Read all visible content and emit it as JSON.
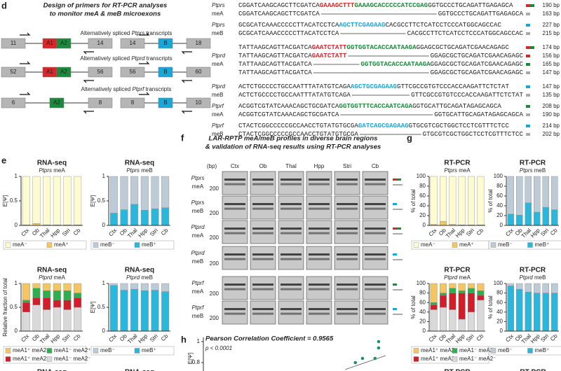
{
  "panel_d": {
    "letter": "d",
    "title": [
      "Design of primers for RT-PCR analyses",
      "to monitor meA & meB microexons"
    ],
    "exon_colors": {
      "A1": "#d9262b",
      "A2": "#1b8a3c",
      "B": "#1ba6d8"
    },
    "transcripts": [
      {
        "label": [
          "Alternatively spliced ",
          "Ptprs",
          " transcripts"
        ],
        "a_exons": [
          "11",
          "A1",
          "A2",
          "14"
        ],
        "b_exons": [
          "14",
          "B",
          "18"
        ]
      },
      {
        "label": [
          "Alternatively spliced ",
          "Ptprd",
          " transcripts"
        ],
        "a_exons": [
          "52",
          "A1",
          "A2",
          "56"
        ],
        "b_exons": [
          "56",
          "B",
          "60"
        ]
      },
      {
        "label": [
          "Alternatively spliced ",
          "Ptprf",
          " transcripts"
        ],
        "a_exons": [
          "6",
          "A2",
          "8"
        ],
        "b_exons": [
          "8",
          "B",
          "10"
        ]
      }
    ],
    "sequence_groups": [
      {
        "gene": "Ptprs",
        "isoform": "meA",
        "rows": [
          {
            "left": [
              {
                "text": "CGGATCAAGCAGCTTCGATCA"
              },
              {
                "text": "GAAAGCTTT",
                "color": "#d9262b"
              },
              {
                "text": "GAAAGCACCCCCATCCGAG",
                "color": "#1b8a3c"
              },
              {
                "text": "GGTGCCCTGCAGATTGAGAGCA"
              }
            ],
            "size": "190 bp"
          },
          {
            "left": [
              {
                "text": "CGGATCAAGCAGCTTCGATCA"
              }
            ],
            "right": [
              {
                "text": "GGTGCCCTGCAGATTGAGAGCA"
              }
            ],
            "size": "163 bp"
          }
        ]
      },
      {
        "gene": "Ptprs",
        "isoform": "meB",
        "rows": [
          {
            "left": [
              {
                "text": "GCGCATCAAACCCCCTTACATCCTCA"
              },
              {
                "text": "AGCTTCGAGAAG",
                "color": "#1ba6d8"
              },
              {
                "text": "CACGCCTTCTCATCCTCCCATGGCAGCCAC"
              }
            ],
            "size": "227 bp"
          },
          {
            "left": [
              {
                "text": "GCGCATCAAACCCCCTTACATCCTCA"
              }
            ],
            "right": [
              {
                "text": "CACGCCTTCTCATCCTCCCATGGCAGCCAC"
              }
            ],
            "size": "215 bp"
          }
        ]
      },
      {
        "gene": "Ptprd",
        "isoform": "meA",
        "rows": [
          {
            "left": [
              {
                "text": "TATTAAGCAGTTACGATCA"
              },
              {
                "text": "GAATCTATT",
                "color": "#d9262b"
              },
              {
                "text": "GGTGGTACACCAATAAGA",
                "color": "#1b8a3c"
              },
              {
                "text": "GGAGCGCTGCAGATCGAACAGAGC"
              }
            ],
            "size": "174 bp"
          },
          {
            "left": [
              {
                "text": "TATTAAGCAGTTACGATCA"
              },
              {
                "text": "GAATCTATT",
                "color": "#d9262b"
              }
            ],
            "right": [
              {
                "text": "GGAGCGCTGCAGATCGAACAGAGC"
              }
            ],
            "size": "156 bp"
          },
          {
            "left": [
              {
                "text": "TATTAAGCAGTTACGATCA"
              }
            ],
            "right": [
              {
                "text": "GGTGGTACACCAATAAGA",
                "color": "#1b8a3c"
              },
              {
                "text": "GGAGCGCTGCAGATCGAACAGAGC"
              }
            ],
            "size": "165 bp"
          },
          {
            "left": [
              {
                "text": "TATTAAGCAGTTACGATCA"
              }
            ],
            "right": [
              {
                "text": "GGAGCGCTGCAGATCGAACAGAGC"
              }
            ],
            "size": "147 bp"
          }
        ]
      },
      {
        "gene": "Ptprd",
        "isoform": "meB",
        "rows": [
          {
            "left": [
              {
                "text": "ACTCTGCCCCTGCCAATTTATATGTCAGA"
              },
              {
                "text": "AGCTGCGAGAAG",
                "color": "#1ba6d8"
              },
              {
                "text": "GTTCGCCGTGTCCCACCAAGATTCTCTAT"
              }
            ],
            "size": "147 bp"
          },
          {
            "left": [
              {
                "text": "ACTCTGCCCCTGCCAATTTATATGTCAGA"
              }
            ],
            "right": [
              {
                "text": "GTTCGCCGTGTCCCACCAAGATTCTCTAT"
              }
            ],
            "size": "135 bp"
          }
        ]
      },
      {
        "gene": "Ptprf",
        "isoform": "meA",
        "rows": [
          {
            "left": [
              {
                "text": "ACGGTCGTATCAAACAGCTGCGATCA"
              },
              {
                "text": "GGTGGTTTCACCAATCAGA",
                "color": "#1b8a3c"
              },
              {
                "text": "GGTGCATTGCAGATAGAGCAGCA"
              }
            ],
            "size": "208 bp"
          },
          {
            "left": [
              {
                "text": "ACGGTCGTATCAAACAGCTGCGATCA"
              }
            ],
            "right": [
              {
                "text": "GGTGCATTGCAGATAGAGCAGCA"
              }
            ],
            "size": "190 bp"
          }
        ]
      },
      {
        "gene": "Ptprf",
        "isoform": "meB",
        "rows": [
          {
            "left": [
              {
                "text": "CTACTCGGCCCCCGCCAACCTGTATGTGCGA"
              },
              {
                "text": "GATCAGCGAGAAG",
                "color": "#1ba6d8"
              },
              {
                "text": "GTGCGTCGCTGGCTCCTCGTTTCTCC"
              }
            ],
            "size": "214 bp"
          },
          {
            "left": [
              {
                "text": "CTACTCGGCCCCCGCCAACCTGTATGTGCGA"
              }
            ],
            "right": [
              {
                "text": "GTGCGTCGCTGGCTCCTCGTTTCTCC"
              }
            ],
            "size": "202 bp"
          }
        ]
      }
    ]
  },
  "lane_colors": [
    "#1ba6d8",
    "#8b7a2a",
    "#c7702a",
    "#3aa335",
    "#7b3f8f",
    "#b65fb5"
  ],
  "panel_e": {
    "letter": "e",
    "cutoff_titles": [
      "RNA-seq",
      "RNA-seq"
    ],
    "charts": [
      {
        "type": "bar",
        "title": "RNA-seq",
        "gene": "Ptprs",
        "isoform": "meA",
        "ylabel": "E[Ψ]",
        "categories": [
          "Ctx",
          "Ob",
          "Thal",
          "Hpp",
          "Stri",
          "Cb"
        ],
        "ylim": [
          0,
          1
        ],
        "yticks": [
          0,
          0.5,
          1
        ],
        "series": [
          {
            "name": "meA⁺",
            "color": "#f3c662",
            "values": [
              0.01,
              0.04,
              0.01,
              0.01,
              0.01,
              0.01
            ]
          },
          {
            "name": "meA⁻",
            "color": "#fffbd0",
            "values": [
              0.99,
              0.96,
              0.99,
              0.99,
              0.99,
              0.99
            ]
          }
        ]
      },
      {
        "type": "bar",
        "title": "RNA-seq",
        "gene": "Ptprs",
        "isoform": "meB",
        "ylabel": "E[Ψ]",
        "categories": [
          "Ctx",
          "Ob",
          "Thal",
          "Hpp",
          "Stri",
          "Cb"
        ],
        "ylim": [
          0,
          1
        ],
        "yticks": [
          0,
          0.5,
          1
        ],
        "series": [
          {
            "name": "meB⁺",
            "color": "#2bb6dc",
            "values": [
              0.25,
              0.32,
              0.43,
              0.31,
              0.34,
              0.36
            ]
          },
          {
            "name": "meB⁻",
            "color": "#bccbd6",
            "values": [
              0.75,
              0.68,
              0.57,
              0.69,
              0.66,
              0.64
            ]
          }
        ]
      },
      {
        "type": "bar",
        "title": "RNA-seq",
        "gene": "Ptprd",
        "isoform": "meA",
        "ylabel": "Relative fraction of total",
        "categories": [
          "Ctx",
          "Ob",
          "Thal",
          "Hpp",
          "Stri",
          "Cb"
        ],
        "ylim": [
          0,
          1
        ],
        "yticks": [
          0,
          0.5,
          1
        ],
        "series": [
          {
            "name": "meA1⁻ meA2⁻",
            "color": "#d9d9d9",
            "values": [
              0.4,
              0.55,
              0.45,
              0.5,
              0.45,
              0.5
            ]
          },
          {
            "name": "meA1⁺ meA2⁻",
            "color": "#d21e2a",
            "values": [
              0.2,
              0.15,
              0.25,
              0.15,
              0.2,
              0.2
            ]
          },
          {
            "name": "meA1⁻ meA2⁺",
            "color": "#2fae4f",
            "values": [
              0.05,
              0.2,
              0.15,
              0.2,
              0.2,
              0.1
            ]
          },
          {
            "name": "meA1⁺ meA2⁺",
            "color": "#f3c662",
            "values": [
              0.35,
              0.1,
              0.15,
              0.15,
              0.15,
              0.2
            ]
          }
        ]
      },
      {
        "type": "bar",
        "title": "RNA-seq",
        "gene": "Ptprd",
        "isoform": "meB",
        "ylabel": "E[Ψ]",
        "categories": [
          "Ctx",
          "Ob",
          "Thal",
          "Hpp",
          "Stri",
          "Cb"
        ],
        "ylim": [
          0,
          1
        ],
        "yticks": [
          0,
          0.5,
          1
        ],
        "series": [
          {
            "name": "meB⁺",
            "color": "#2bb6dc",
            "values": [
              0.96,
              0.86,
              0.88,
              0.85,
              0.86,
              0.83
            ]
          },
          {
            "name": "meB⁻",
            "color": "#bccbd6",
            "values": [
              0.04,
              0.14,
              0.12,
              0.15,
              0.14,
              0.17
            ]
          }
        ]
      }
    ]
  },
  "panel_f": {
    "letter": "f",
    "title": [
      "LAR-RPTP meA/meB profiles in diverse brain regions",
      "& validation of RNA-seq results using RT-PCR analyses"
    ],
    "bp_label": "(bp)",
    "lanes": [
      "Ctx",
      "Ob",
      "Thal",
      "Hpp",
      "Stri",
      "Cb"
    ],
    "rows": [
      {
        "gene": "Ptprs",
        "isoform": "meA",
        "ladder": 200
      },
      {
        "gene": "Ptprs",
        "isoform": "meB",
        "ladder": 200
      },
      {
        "gene": "Ptprd",
        "isoform": "meA",
        "ladder": 200
      },
      {
        "gene": "Ptprd",
        "isoform": "meB",
        "ladder": 200
      },
      {
        "gene": "Ptprf",
        "isoform": "meA",
        "ladder": 200
      },
      {
        "gene": "Ptprf",
        "isoform": "meB",
        "ladder": 200
      }
    ]
  },
  "panel_g": {
    "letter": "g",
    "cutoff_titles": [
      "RT-PCR",
      "RT-PCR"
    ],
    "charts": [
      {
        "type": "bar",
        "title": "RT-PCR",
        "gene": "Ptprs",
        "isoform": "meA",
        "ylabel": "% of total",
        "categories": [
          "Ctx",
          "Ob",
          "Thal",
          "Hpp",
          "Stri",
          "Cb"
        ],
        "ylim": [
          0,
          100
        ],
        "yticks": [
          0,
          20,
          40,
          60,
          80,
          100
        ],
        "series": [
          {
            "name": "meA⁺",
            "color": "#f3c662",
            "values": [
              2,
              8,
              2,
              1,
              1,
              1
            ]
          },
          {
            "name": "meA⁻",
            "color": "#fffbd0",
            "values": [
              98,
              92,
              98,
              99,
              99,
              99
            ]
          }
        ]
      },
      {
        "type": "bar",
        "title": "RT-PCR",
        "gene": "Ptprs",
        "isoform": "meB",
        "ylabel": "% of total",
        "categories": [
          "Ctx",
          "Ob",
          "Thal",
          "Hpp",
          "Stri",
          "Cb"
        ],
        "ylim": [
          0,
          100
        ],
        "yticks": [
          0,
          20,
          40,
          60,
          80,
          100
        ],
        "series": [
          {
            "name": "meB⁺",
            "color": "#2bb6dc",
            "values": [
              23,
              21,
              46,
              27,
              37,
              32
            ]
          },
          {
            "name": "meB⁻",
            "color": "#bccbd6",
            "values": [
              77,
              79,
              54,
              73,
              63,
              68
            ]
          }
        ]
      },
      {
        "type": "bar",
        "title": "RT-PCR",
        "gene": "Ptprd",
        "isoform": "meA",
        "ylabel": "% of total",
        "categories": [
          "Ctx",
          "Ob",
          "Thal",
          "Hpp",
          "Stri",
          "Cb"
        ],
        "ylim": [
          0,
          100
        ],
        "yticks": [
          0,
          20,
          40,
          60,
          80,
          100
        ],
        "series": [
          {
            "name": "meA1⁻ meA2⁻",
            "color": "#d9d9d9",
            "values": [
              45,
              50,
              45,
              25,
              40,
              65
            ]
          },
          {
            "name": "meA1⁺ meA2⁻",
            "color": "#d21e2a",
            "values": [
              10,
              25,
              35,
              55,
              40,
              10
            ]
          },
          {
            "name": "meA1⁻ meA2⁺",
            "color": "#2fae4f",
            "values": [
              5,
              5,
              10,
              5,
              10,
              10
            ]
          },
          {
            "name": "meA1⁺ meA2⁺",
            "color": "#f3c662",
            "values": [
              40,
              20,
              10,
              15,
              10,
              15
            ]
          }
        ]
      },
      {
        "type": "bar",
        "title": "RT-PCR",
        "gene": "Ptprd",
        "isoform": "meB",
        "ylabel": "% of total",
        "categories": [
          "Ctx",
          "Ob",
          "Thal",
          "Hpp",
          "Stri",
          "Cb"
        ],
        "ylim": [
          0,
          100
        ],
        "yticks": [
          0,
          20,
          40,
          60,
          80,
          100
        ],
        "series": [
          {
            "name": "meB⁺",
            "color": "#2bb6dc",
            "values": [
              95,
              88,
              82,
              80,
              80,
              80
            ]
          },
          {
            "name": "meB⁻",
            "color": "#bccbd6",
            "values": [
              5,
              12,
              18,
              20,
              20,
              20
            ]
          }
        ]
      }
    ]
  },
  "panel_h": {
    "letter": "h",
    "type": "scatter",
    "lines": [
      "Pearson Correlation Coefficient = 0.9565",
      "p < 0.0001"
    ],
    "ylabel": "E[Ψ]",
    "color": "#1f8f73",
    "xlim": [
      0.5,
      1
    ],
    "ylim": [
      0.78,
      1.02
    ],
    "yticks": [
      0.8,
      1
    ],
    "x": [
      0.925,
      0.945,
      0.98,
      0.99,
      0.99
    ],
    "y": [
      0.8,
      0.84,
      0.84,
      0.94,
      1
    ]
  }
}
